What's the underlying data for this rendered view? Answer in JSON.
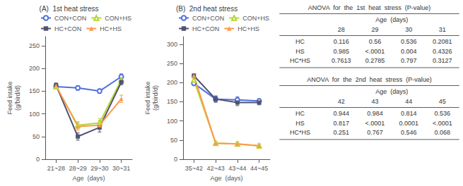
{
  "chart_data": [
    {
      "type": "line",
      "title": "(A)  1st heat stress",
      "xlabel": "Age  (days)",
      "ylabel": "Feed intake\n(g/bird/d)",
      "categories": [
        "21~28",
        "28~29",
        "29~30",
        "30~31"
      ],
      "ylim": [
        0,
        270
      ],
      "yticks": [
        0,
        50,
        100,
        150,
        200,
        250
      ],
      "grid": false,
      "legend": "upper right",
      "series": [
        {
          "name": "CON+CON",
          "marker": "emptyCircle",
          "values": [
            160,
            157,
            150,
            182
          ],
          "yerr": [
            5,
            5,
            5,
            6
          ]
        },
        {
          "name": "CON+HS",
          "marker": "emptyTriangle",
          "values": [
            160,
            75,
            80,
            175
          ],
          "yerr": [
            5,
            8,
            10,
            6
          ]
        },
        {
          "name": "HC+CON",
          "marker": "rect",
          "values": [
            163,
            50,
            70,
            170
          ],
          "yerr": [
            5,
            8,
            10,
            6
          ]
        },
        {
          "name": "HC+HS",
          "marker": "triangle",
          "values": [
            162,
            72,
            75,
            133
          ],
          "yerr": [
            5,
            8,
            10,
            8
          ]
        }
      ]
    },
    {
      "type": "line",
      "title": "(B)  2nd heat stress",
      "xlabel": "Age  (days)",
      "ylabel": "Feed intake\n(g/bird/d)",
      "categories": [
        "35~42",
        "42~43",
        "43~44",
        "44~45"
      ],
      "ylim": [
        0,
        320
      ],
      "yticks": [
        0,
        50,
        100,
        150,
        200,
        250,
        300
      ],
      "grid": false,
      "legend": "upper right",
      "series": [
        {
          "name": "CON+CON",
          "marker": "emptyCircle",
          "values": [
            198,
            157,
            155,
            152
          ],
          "yerr": [
            5,
            8,
            8,
            6
          ]
        },
        {
          "name": "CON+HS",
          "marker": "emptyTriangle",
          "values": [
            207,
            42,
            40,
            35
          ],
          "yerr": [
            5,
            5,
            5,
            5
          ]
        },
        {
          "name": "HC+CON",
          "marker": "rect",
          "values": [
            218,
            157,
            148,
            148
          ],
          "yerr": [
            5,
            8,
            8,
            6
          ]
        },
        {
          "name": "HC+HS",
          "marker": "triangle",
          "values": [
            218,
            42,
            40,
            35
          ],
          "yerr": [
            5,
            5,
            5,
            5
          ]
        }
      ]
    },
    {
      "type": "table",
      "title": "ANOVA  for  the  1st  heat  stress  (P-value)",
      "column_title": "Age  (days)",
      "columns": [
        "28",
        "29",
        "30",
        "31"
      ],
      "rows": [
        "HC",
        "HS",
        "HC*HS"
      ],
      "cells": [
        [
          "0.116",
          "0.56",
          "0.536",
          "0.2081"
        ],
        [
          "0.985",
          "<.0001",
          "0.004",
          "0.4326"
        ],
        [
          "0.7613",
          "0.2785",
          "0.797",
          "0.3127"
        ]
      ]
    },
    {
      "type": "table",
      "title": "ANOVA  for  the  2nd  heat  stress  (P-value)",
      "column_title": "Age  (days)",
      "columns": [
        "42",
        "43",
        "44",
        "45"
      ],
      "rows": [
        "HC",
        "HS",
        "HC*HS"
      ],
      "cells": [
        [
          "0.944",
          "0.984",
          "0.814",
          "0.536"
        ],
        [
          "0.817",
          "<.0001",
          "0.0001",
          "<.0001"
        ],
        [
          "0.251",
          "0.767",
          "0.546",
          "0.068"
        ]
      ]
    }
  ]
}
